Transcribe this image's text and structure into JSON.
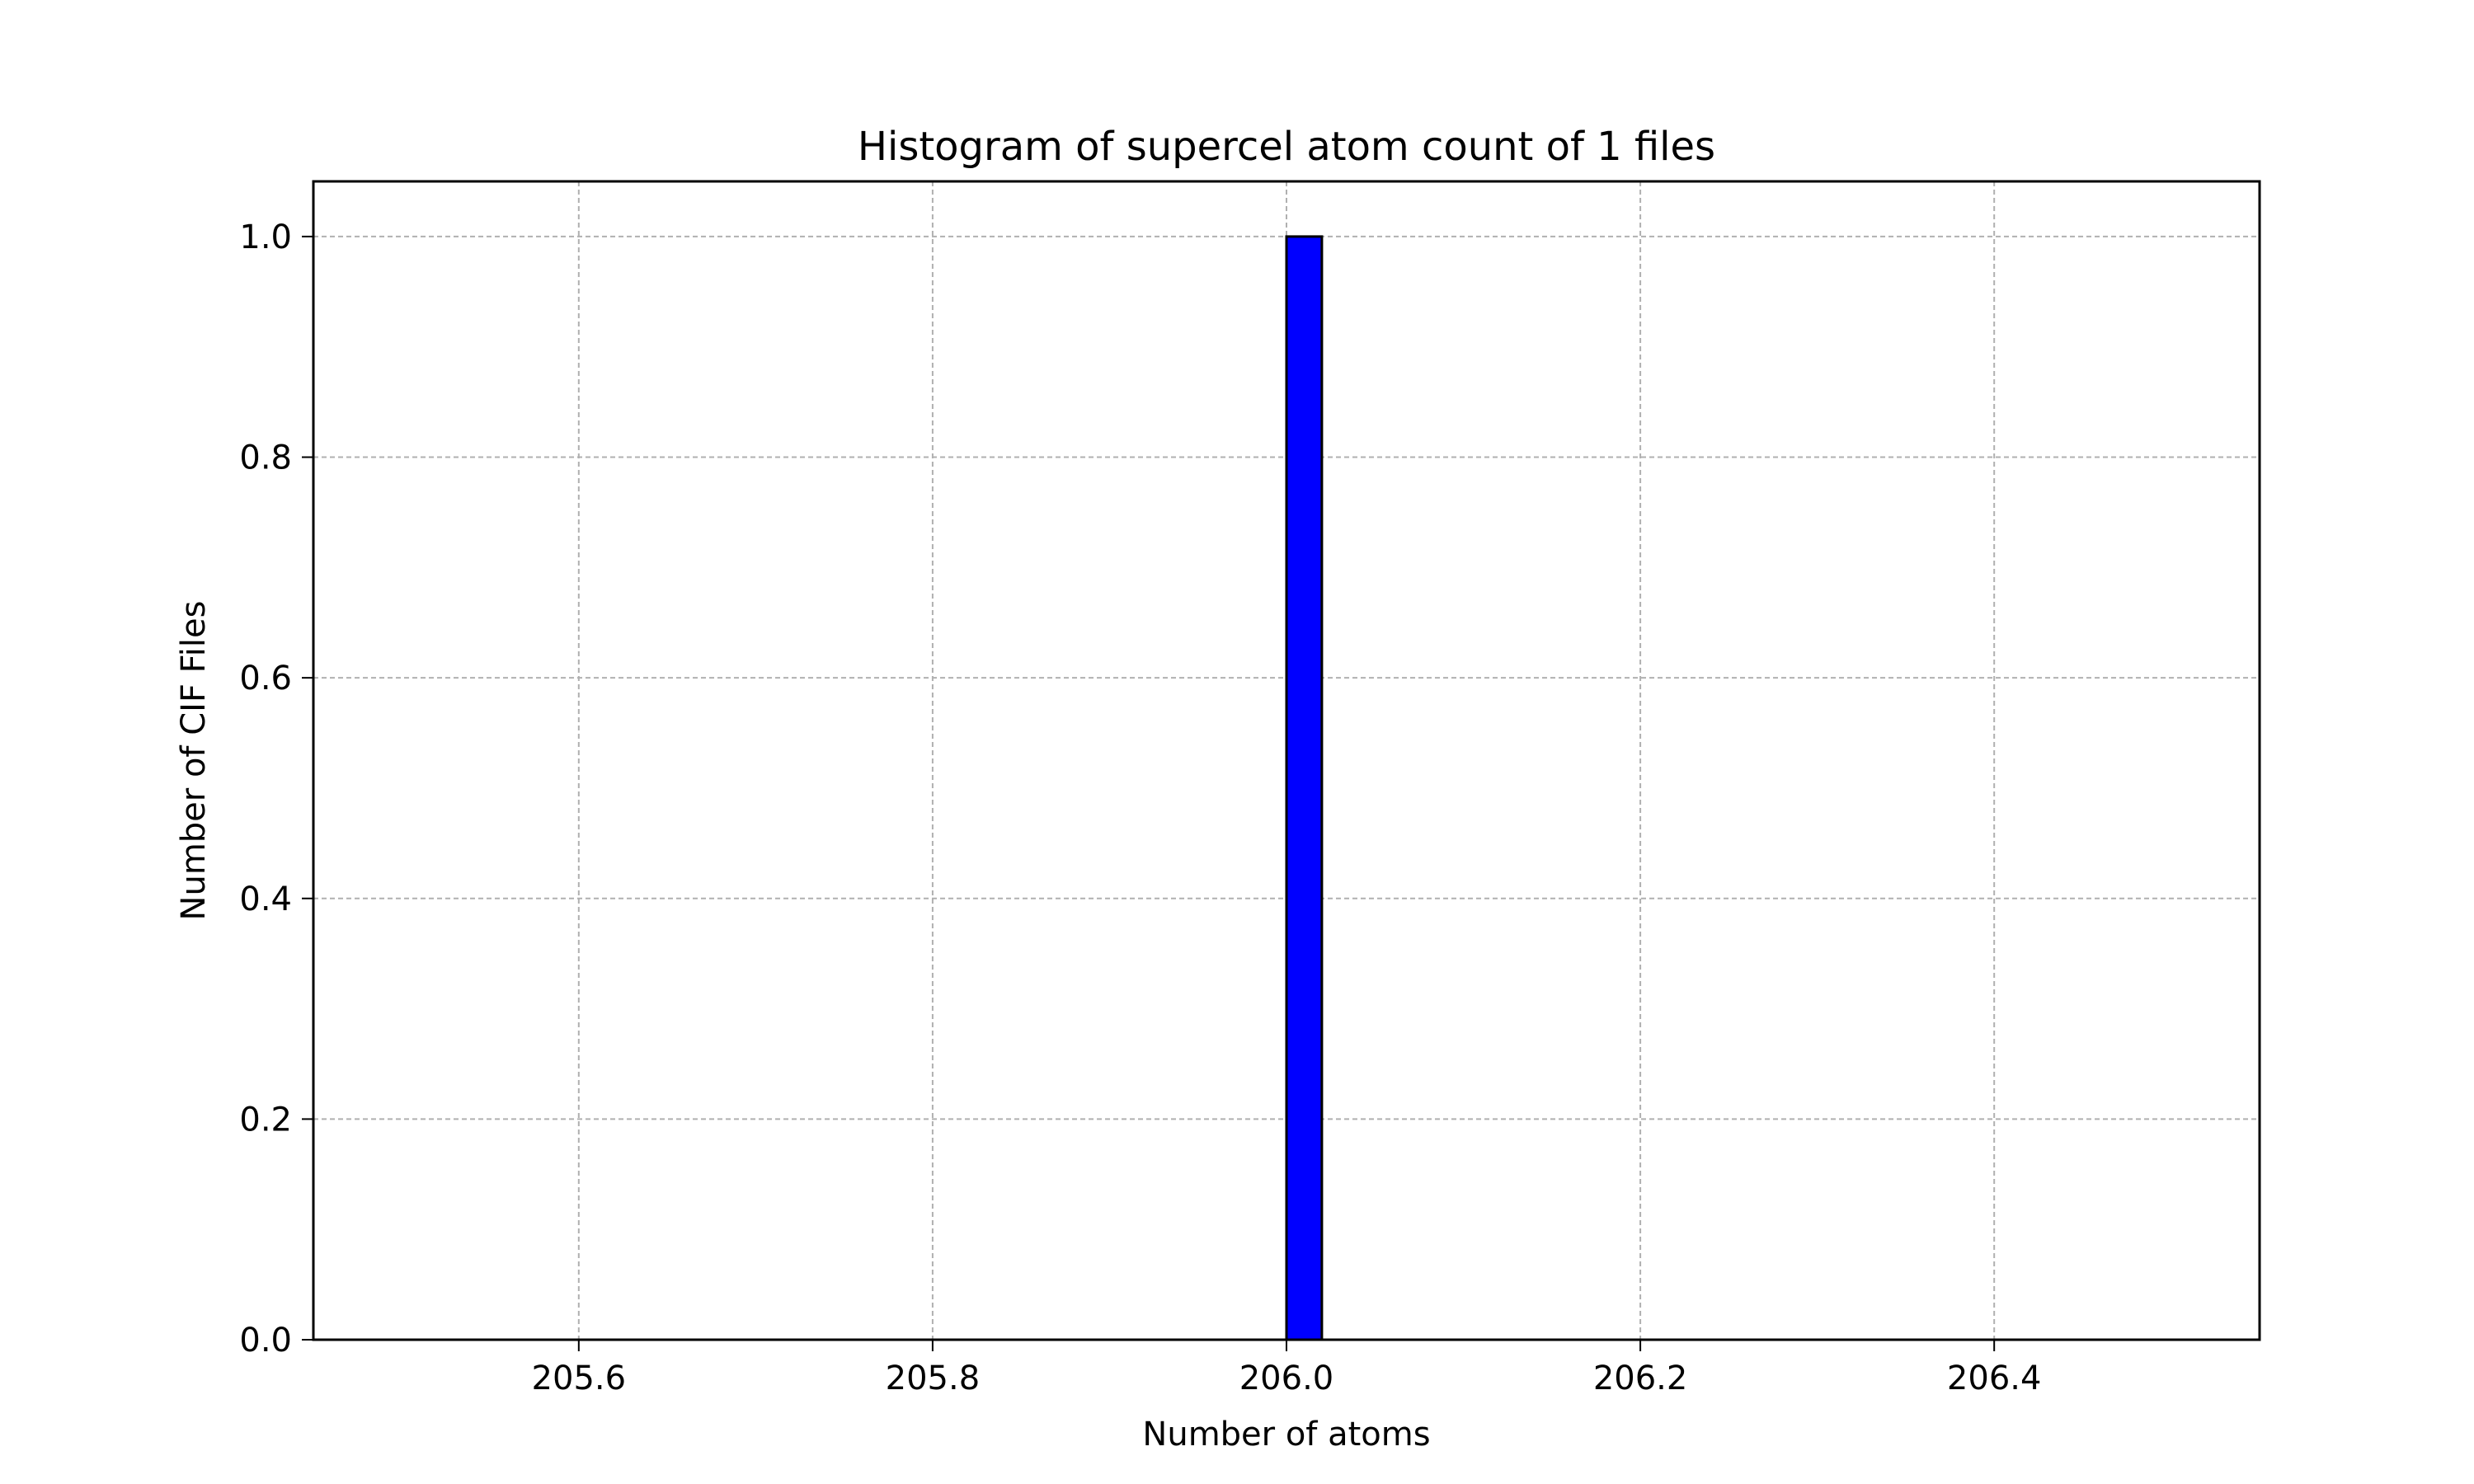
{
  "chart_data": {
    "type": "bar",
    "title": "Histogram of supercel atom count of 1 files",
    "xlabel": "Number of atoms",
    "ylabel": "Number of CIF Files",
    "xlim": [
      205.45,
      206.55
    ],
    "ylim": [
      0.0,
      1.05
    ],
    "xticks": [
      "205.6",
      "205.8",
      "206.0",
      "206.2",
      "206.4"
    ],
    "xtick_values": [
      205.6,
      205.8,
      206.0,
      206.2,
      206.4
    ],
    "yticks": [
      "0.0",
      "0.2",
      "0.4",
      "0.6",
      "0.8",
      "1.0"
    ],
    "ytick_values": [
      0.0,
      0.2,
      0.4,
      0.6,
      0.8,
      1.0
    ],
    "bins": {
      "start": 205.5,
      "end": 206.5,
      "count": 50
    },
    "bars": [
      {
        "x_start": 206.0,
        "x_end": 206.02,
        "value": 1.0
      }
    ],
    "grid": true,
    "colors": {
      "bar_fill": "#0000ff",
      "bar_edge": "#000000",
      "grid": "#b0b0b0",
      "axis": "#000000"
    }
  }
}
